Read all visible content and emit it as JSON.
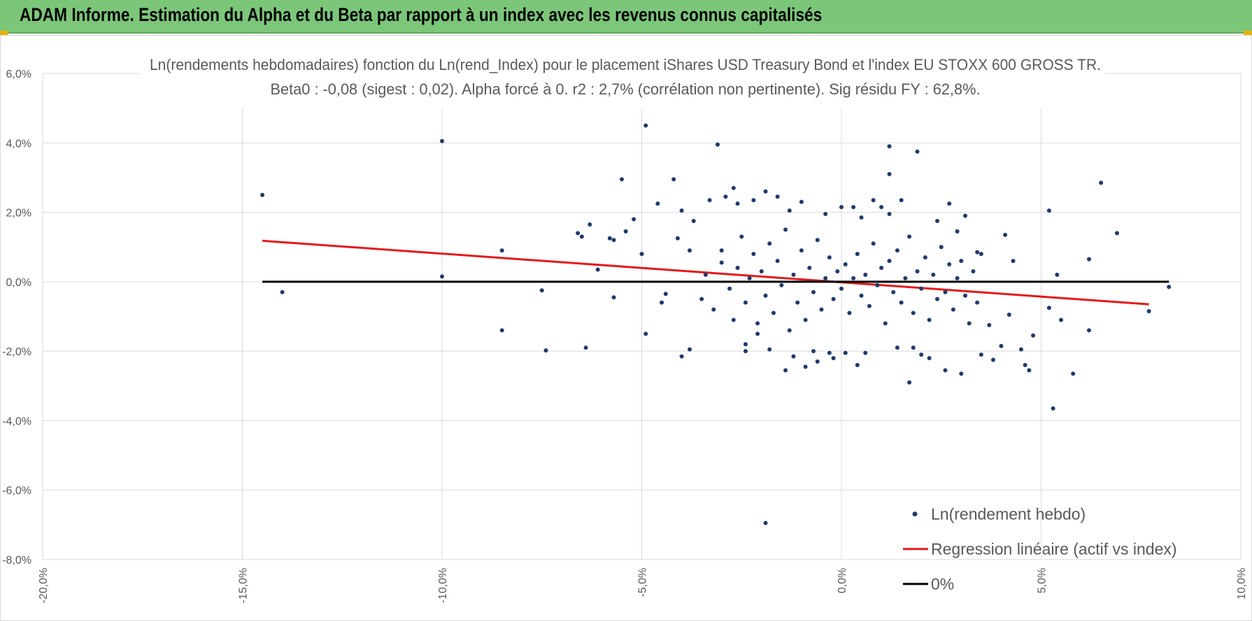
{
  "header": {
    "title": "ADAM Informe. Estimation du Alpha et du Beta par rapport à un index avec les revenus connus capitalisés"
  },
  "chart_data": {
    "type": "scatter",
    "title": "Ln(rendements hebdomadaires) fonction du Ln(rend_Index) pour le placement iShares USD Treasury Bond et l'index EU STOXX 600 GROSS TR.",
    "subtitle": "Beta0 : -0,08 (sigest : 0,02).  Alpha forcé à 0. r2 : 2,7% (corrélation non pertinente). Sig résidu FY : 62,8%.",
    "xlabel": "",
    "ylabel": "",
    "xlim": [
      -0.2,
      0.1
    ],
    "ylim": [
      -0.08,
      0.06
    ],
    "grid": true,
    "x_ticks": [
      "-20,0%",
      "-15,0%",
      "-10,0%",
      "-5,0%",
      "0,0%",
      "5,0%",
      "10,0%"
    ],
    "y_ticks": [
      "6,0%",
      "4,0%",
      "2,0%",
      "0,0%",
      "-2,0%",
      "-4,0%",
      "-6,0%",
      "-8,0%"
    ],
    "legend_position": "bottom-right",
    "series": [
      {
        "name": "Ln(rendement hebdo)",
        "kind": "points",
        "color": "#1f3a6e",
        "points": [
          [
            -0.145,
            0.025
          ],
          [
            -0.14,
            -0.003
          ],
          [
            -0.1,
            0.0405
          ],
          [
            -0.1,
            0.0015
          ],
          [
            -0.085,
            0.009
          ],
          [
            -0.085,
            -0.014
          ],
          [
            -0.075,
            -0.0025
          ],
          [
            -0.074,
            -0.0198
          ],
          [
            -0.066,
            0.014
          ],
          [
            -0.065,
            0.013
          ],
          [
            -0.064,
            -0.019
          ],
          [
            -0.063,
            0.0165
          ],
          [
            -0.061,
            0.0035
          ],
          [
            -0.058,
            0.0125
          ],
          [
            -0.057,
            0.012
          ],
          [
            -0.057,
            -0.0045
          ],
          [
            -0.055,
            0.0295
          ],
          [
            -0.054,
            0.0145
          ],
          [
            -0.052,
            0.018
          ],
          [
            -0.05,
            0.008
          ],
          [
            -0.049,
            0.045
          ],
          [
            -0.049,
            -0.015
          ],
          [
            -0.046,
            0.0225
          ],
          [
            -0.045,
            -0.006
          ],
          [
            -0.044,
            -0.0035
          ],
          [
            -0.042,
            0.0295
          ],
          [
            -0.041,
            0.0125
          ],
          [
            -0.04,
            0.0205
          ],
          [
            -0.04,
            -0.0215
          ],
          [
            -0.038,
            -0.0195
          ],
          [
            -0.038,
            0.009
          ],
          [
            -0.037,
            0.0175
          ],
          [
            -0.033,
            0.0235
          ],
          [
            -0.031,
            0.0395
          ],
          [
            -0.03,
            0.0055
          ],
          [
            -0.029,
            0.0245
          ],
          [
            -0.027,
            0.027
          ],
          [
            -0.026,
            0.0225
          ],
          [
            -0.024,
            -0.02
          ],
          [
            -0.024,
            -0.018
          ],
          [
            -0.022,
            0.0235
          ],
          [
            -0.021,
            -0.015
          ],
          [
            -0.019,
            0.026
          ],
          [
            -0.019,
            -0.0695
          ],
          [
            -0.018,
            -0.0195
          ],
          [
            -0.016,
            0.0245
          ],
          [
            -0.014,
            -0.0255
          ],
          [
            -0.013,
            0.0205
          ],
          [
            -0.012,
            -0.0215
          ],
          [
            -0.01,
            0.023
          ],
          [
            -0.009,
            -0.0245
          ],
          [
            -0.007,
            -0.02
          ],
          [
            -0.006,
            -0.023
          ],
          [
            -0.004,
            0.0195
          ],
          [
            -0.003,
            -0.0205
          ],
          [
            -0.002,
            -0.022
          ],
          [
            0.0,
            0.0215
          ],
          [
            0.001,
            -0.0205
          ],
          [
            0.003,
            0.0215
          ],
          [
            0.004,
            -0.024
          ],
          [
            0.005,
            0.0185
          ],
          [
            0.006,
            -0.0205
          ],
          [
            0.008,
            0.0235
          ],
          [
            0.01,
            0.0215
          ],
          [
            0.012,
            0.0195
          ],
          [
            0.012,
            0.031
          ],
          [
            0.012,
            0.039
          ],
          [
            0.014,
            -0.019
          ],
          [
            0.015,
            0.0235
          ],
          [
            0.017,
            -0.029
          ],
          [
            0.018,
            -0.019
          ],
          [
            0.019,
            0.0375
          ],
          [
            0.02,
            -0.021
          ],
          [
            0.022,
            -0.022
          ],
          [
            0.024,
            0.0175
          ],
          [
            0.026,
            -0.0255
          ],
          [
            0.027,
            0.0225
          ],
          [
            0.029,
            0.0145
          ],
          [
            0.03,
            -0.0265
          ],
          [
            0.031,
            0.019
          ],
          [
            0.034,
            0.0085
          ],
          [
            0.035,
            -0.021
          ],
          [
            0.037,
            -0.0125
          ],
          [
            0.038,
            -0.0225
          ],
          [
            0.04,
            -0.0185
          ],
          [
            0.041,
            0.0135
          ],
          [
            0.042,
            -0.0095
          ],
          [
            0.043,
            0.006
          ],
          [
            0.045,
            -0.0195
          ],
          [
            0.046,
            -0.024
          ],
          [
            0.047,
            -0.0255
          ],
          [
            0.048,
            -0.0155
          ],
          [
            0.052,
            0.0205
          ],
          [
            0.052,
            -0.0075
          ],
          [
            0.053,
            -0.0365
          ],
          [
            0.054,
            0.002
          ],
          [
            0.055,
            -0.011
          ],
          [
            0.058,
            -0.0265
          ],
          [
            0.062,
            -0.014
          ],
          [
            0.062,
            0.0065
          ],
          [
            0.065,
            0.0285
          ],
          [
            0.069,
            0.014
          ],
          [
            0.077,
            -0.0085
          ],
          [
            0.082,
            -0.0015
          ],
          [
            -0.035,
            -0.005
          ],
          [
            -0.034,
            0.002
          ],
          [
            -0.032,
            -0.008
          ],
          [
            -0.03,
            0.009
          ],
          [
            -0.028,
            -0.002
          ],
          [
            -0.027,
            -0.011
          ],
          [
            -0.026,
            0.004
          ],
          [
            -0.025,
            0.013
          ],
          [
            -0.024,
            -0.006
          ],
          [
            -0.023,
            0.001
          ],
          [
            -0.022,
            0.008
          ],
          [
            -0.021,
            -0.012
          ],
          [
            -0.02,
            0.003
          ],
          [
            -0.019,
            -0.004
          ],
          [
            -0.018,
            0.011
          ],
          [
            -0.017,
            -0.009
          ],
          [
            -0.016,
            0.006
          ],
          [
            -0.015,
            -0.001
          ],
          [
            -0.014,
            0.015
          ],
          [
            -0.013,
            -0.014
          ],
          [
            -0.012,
            0.002
          ],
          [
            -0.011,
            -0.006
          ],
          [
            -0.01,
            0.009
          ],
          [
            -0.009,
            -0.011
          ],
          [
            -0.008,
            0.004
          ],
          [
            -0.007,
            -0.003
          ],
          [
            -0.006,
            0.012
          ],
          [
            -0.005,
            -0.008
          ],
          [
            -0.004,
            0.001
          ],
          [
            -0.003,
            0.007
          ],
          [
            -0.002,
            -0.005
          ],
          [
            -0.001,
            0.003
          ],
          [
            0.0,
            -0.002
          ],
          [
            0.001,
            0.005
          ],
          [
            0.002,
            -0.009
          ],
          [
            0.003,
            0.001
          ],
          [
            0.004,
            0.008
          ],
          [
            0.005,
            -0.004
          ],
          [
            0.006,
            0.002
          ],
          [
            0.007,
            -0.007
          ],
          [
            0.008,
            0.011
          ],
          [
            0.009,
            -0.001
          ],
          [
            0.01,
            0.004
          ],
          [
            0.011,
            -0.012
          ],
          [
            0.012,
            0.006
          ],
          [
            0.013,
            -0.003
          ],
          [
            0.014,
            0.009
          ],
          [
            0.015,
            -0.006
          ],
          [
            0.016,
            0.001
          ],
          [
            0.017,
            0.013
          ],
          [
            0.018,
            -0.009
          ],
          [
            0.019,
            0.003
          ],
          [
            0.02,
            -0.002
          ],
          [
            0.021,
            0.007
          ],
          [
            0.022,
            -0.011
          ],
          [
            0.023,
            0.002
          ],
          [
            0.024,
            -0.005
          ],
          [
            0.025,
            0.01
          ],
          [
            0.026,
            -0.003
          ],
          [
            0.027,
            0.005
          ],
          [
            0.028,
            -0.008
          ],
          [
            0.029,
            0.001
          ],
          [
            0.03,
            0.006
          ],
          [
            0.031,
            -0.004
          ],
          [
            0.032,
            -0.012
          ],
          [
            0.033,
            0.003
          ],
          [
            0.034,
            -0.006
          ],
          [
            0.035,
            0.008
          ]
        ]
      },
      {
        "name": "Regression linéaire (actif vs index)",
        "kind": "line",
        "color": "#e31a1c",
        "points": [
          [
            -0.145,
            0.0118
          ],
          [
            0.077,
            -0.0065
          ]
        ]
      },
      {
        "name": "0%",
        "kind": "line",
        "color": "#000000",
        "points": [
          [
            -0.145,
            0.0
          ],
          [
            0.082,
            0.0
          ]
        ]
      }
    ]
  }
}
